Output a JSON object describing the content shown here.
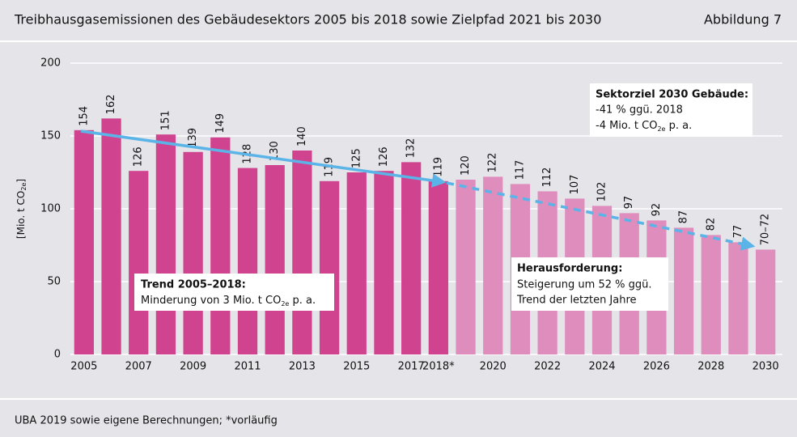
{
  "chart_data": {
    "type": "bar",
    "title": "Treibhausgasemissionen des Gebäudesektors 2005 bis 2018 sowie Zielpfad 2021 bis 2030",
    "figure_label": "Abbildung 7",
    "ylabel": [
      "[Mio. t CO",
      "2e",
      "]"
    ],
    "source": "UBA 2019 sowie eigene Berechnungen; *vorläufig",
    "categories": [
      "2005",
      null,
      "2007",
      null,
      "2009",
      null,
      "2011",
      null,
      "2013",
      null,
      "2015",
      null,
      "2017",
      "2018*",
      null,
      "2020",
      null,
      "2022",
      null,
      "2024",
      null,
      "2026",
      null,
      "2028",
      null,
      "2030"
    ],
    "values": [
      154,
      162,
      126,
      151,
      139,
      149,
      128,
      130,
      140,
      119,
      125,
      126,
      132,
      119,
      120,
      122,
      117,
      112,
      107,
      102,
      97,
      92,
      87,
      82,
      77,
      72
    ],
    "value_labels": [
      "154",
      "162",
      "126",
      "151",
      "139",
      "149",
      "128",
      "130",
      "140",
      "119",
      "125",
      "126",
      "132",
      "119",
      "120",
      "122",
      "117",
      "112",
      "107",
      "102",
      "97",
      "92",
      "87",
      "82",
      "77",
      "70–72"
    ],
    "colors": [
      "#d0438e",
      "#d0438e",
      "#d0438e",
      "#d0438e",
      "#d0438e",
      "#d0438e",
      "#d0438e",
      "#d0438e",
      "#d0438e",
      "#d0438e",
      "#d0438e",
      "#d0438e",
      "#d0438e",
      "#d0438e",
      "#df8dbd",
      "#df8dbd",
      "#df8dbd",
      "#df8dbd",
      "#df8dbd",
      "#df8dbd",
      "#df8dbd",
      "#df8dbd",
      "#df8dbd",
      "#df8dbd",
      "#df8dbd",
      "#df8dbd"
    ],
    "ylim": [
      0,
      200
    ],
    "yticks": [
      0,
      50,
      100,
      150,
      200
    ],
    "grid": true,
    "annotations": [
      {
        "lines": [
          "Sektorziel 2030 Gebäude:",
          "-41 % ggü. 2018",
          [
            "-4 Mio. t CO",
            "2e",
            " p. a."
          ]
        ]
      },
      {
        "lines": [
          "Trend 2005–2018:",
          [
            "Minderung von 3 Mio. t CO",
            "2e",
            " p. a."
          ]
        ]
      },
      {
        "lines": [
          "Herausforderung:",
          "Steigerung um 52 % ggü.",
          "Trend der letzten Jahre"
        ]
      }
    ]
  }
}
